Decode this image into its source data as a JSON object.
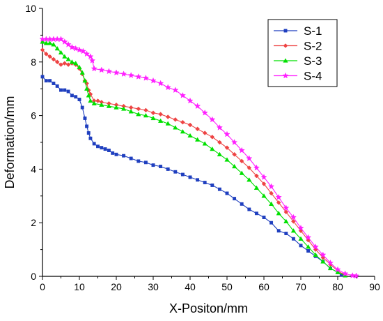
{
  "chart_data": {
    "type": "line",
    "title": "",
    "xlabel": "X-Positon/mm",
    "ylabel": "Deformation/mm",
    "xlim": [
      0,
      90
    ],
    "ylim": [
      0,
      10
    ],
    "x_ticks": [
      "0",
      "10",
      "20",
      "30",
      "40",
      "50",
      "60",
      "70",
      "80",
      "90"
    ],
    "y_ticks": [
      "0",
      "2",
      "4",
      "6",
      "8",
      "10"
    ],
    "grid": false,
    "legend_position": "top-right",
    "series": [
      {
        "name": "S-1",
        "color": "#1f3fbf",
        "marker": "square",
        "points": [
          [
            0,
            7.45
          ],
          [
            1,
            7.3
          ],
          [
            2,
            7.3
          ],
          [
            3,
            7.2
          ],
          [
            4,
            7.1
          ],
          [
            5,
            6.95
          ],
          [
            6,
            6.95
          ],
          [
            7,
            6.9
          ],
          [
            8,
            6.75
          ],
          [
            9,
            6.7
          ],
          [
            10,
            6.6
          ],
          [
            10.8,
            6.3
          ],
          [
            11.5,
            5.9
          ],
          [
            12,
            5.6
          ],
          [
            12.5,
            5.35
          ],
          [
            13,
            5.15
          ],
          [
            14,
            4.95
          ],
          [
            15,
            4.85
          ],
          [
            16,
            4.8
          ],
          [
            17,
            4.75
          ],
          [
            18,
            4.7
          ],
          [
            19,
            4.6
          ],
          [
            20,
            4.55
          ],
          [
            22,
            4.5
          ],
          [
            24,
            4.4
          ],
          [
            26,
            4.3
          ],
          [
            28,
            4.25
          ],
          [
            30,
            4.15
          ],
          [
            32,
            4.1
          ],
          [
            34,
            4.0
          ],
          [
            36,
            3.9
          ],
          [
            38,
            3.8
          ],
          [
            40,
            3.7
          ],
          [
            42,
            3.6
          ],
          [
            44,
            3.5
          ],
          [
            46,
            3.4
          ],
          [
            48,
            3.25
          ],
          [
            50,
            3.1
          ],
          [
            52,
            2.9
          ],
          [
            54,
            2.7
          ],
          [
            56,
            2.5
          ],
          [
            58,
            2.35
          ],
          [
            60,
            2.2
          ],
          [
            62,
            2.0
          ],
          [
            64,
            1.7
          ],
          [
            66,
            1.6
          ],
          [
            68,
            1.4
          ],
          [
            70,
            1.15
          ],
          [
            72,
            0.95
          ],
          [
            74,
            0.75
          ],
          [
            76,
            0.55
          ],
          [
            78,
            0.3
          ],
          [
            80,
            0.15
          ],
          [
            81,
            0.05
          ]
        ]
      },
      {
        "name": "S-2",
        "color": "#ee4444",
        "marker": "diamond",
        "points": [
          [
            0,
            8.45
          ],
          [
            1,
            8.3
          ],
          [
            2,
            8.2
          ],
          [
            3,
            8.1
          ],
          [
            4,
            8.0
          ],
          [
            5,
            7.9
          ],
          [
            6,
            7.95
          ],
          [
            7,
            7.9
          ],
          [
            8,
            7.95
          ],
          [
            9,
            7.9
          ],
          [
            10,
            7.75
          ],
          [
            10.8,
            7.55
          ],
          [
            11.5,
            7.3
          ],
          [
            12,
            7.2
          ],
          [
            12.5,
            6.95
          ],
          [
            13,
            6.8
          ],
          [
            14,
            6.55
          ],
          [
            15,
            6.55
          ],
          [
            16,
            6.5
          ],
          [
            18,
            6.45
          ],
          [
            20,
            6.4
          ],
          [
            22,
            6.35
          ],
          [
            24,
            6.3
          ],
          [
            26,
            6.25
          ],
          [
            28,
            6.2
          ],
          [
            30,
            6.1
          ],
          [
            32,
            6.05
          ],
          [
            34,
            5.95
          ],
          [
            36,
            5.85
          ],
          [
            38,
            5.75
          ],
          [
            40,
            5.65
          ],
          [
            42,
            5.5
          ],
          [
            44,
            5.35
          ],
          [
            46,
            5.2
          ],
          [
            48,
            5.0
          ],
          [
            50,
            4.8
          ],
          [
            52,
            4.55
          ],
          [
            54,
            4.3
          ],
          [
            56,
            4.05
          ],
          [
            58,
            3.75
          ],
          [
            60,
            3.45
          ],
          [
            62,
            3.1
          ],
          [
            64,
            2.75
          ],
          [
            66,
            2.4
          ],
          [
            68,
            2.05
          ],
          [
            70,
            1.7
          ],
          [
            72,
            1.35
          ],
          [
            74,
            1.0
          ],
          [
            76,
            0.7
          ],
          [
            78,
            0.45
          ],
          [
            80,
            0.2
          ],
          [
            82,
            0.05
          ]
        ]
      },
      {
        "name": "S-3",
        "color": "#00e000",
        "marker": "triangle",
        "points": [
          [
            0,
            8.75
          ],
          [
            1,
            8.7
          ],
          [
            2,
            8.7
          ],
          [
            3,
            8.65
          ],
          [
            4,
            8.5
          ],
          [
            5,
            8.35
          ],
          [
            6,
            8.2
          ],
          [
            7,
            8.1
          ],
          [
            8,
            8.0
          ],
          [
            9,
            7.95
          ],
          [
            10,
            7.8
          ],
          [
            10.8,
            7.6
          ],
          [
            11.5,
            7.3
          ],
          [
            12,
            7.0
          ],
          [
            12.5,
            6.75
          ],
          [
            13,
            6.55
          ],
          [
            14,
            6.45
          ],
          [
            16,
            6.4
          ],
          [
            18,
            6.35
          ],
          [
            20,
            6.3
          ],
          [
            22,
            6.25
          ],
          [
            24,
            6.15
          ],
          [
            26,
            6.05
          ],
          [
            28,
            6.0
          ],
          [
            30,
            5.9
          ],
          [
            32,
            5.8
          ],
          [
            34,
            5.7
          ],
          [
            36,
            5.55
          ],
          [
            38,
            5.4
          ],
          [
            40,
            5.25
          ],
          [
            42,
            5.1
          ],
          [
            44,
            4.95
          ],
          [
            46,
            4.75
          ],
          [
            48,
            4.55
          ],
          [
            50,
            4.35
          ],
          [
            52,
            4.1
          ],
          [
            54,
            3.85
          ],
          [
            56,
            3.6
          ],
          [
            58,
            3.3
          ],
          [
            60,
            3.0
          ],
          [
            62,
            2.7
          ],
          [
            64,
            2.35
          ],
          [
            66,
            2.05
          ],
          [
            68,
            1.7
          ],
          [
            70,
            1.4
          ],
          [
            72,
            1.1
          ],
          [
            74,
            0.8
          ],
          [
            76,
            0.55
          ],
          [
            78,
            0.3
          ],
          [
            80,
            0.15
          ],
          [
            82,
            0.03
          ]
        ]
      },
      {
        "name": "S-4",
        "color": "#ff20ff",
        "marker": "star",
        "points": [
          [
            0,
            8.85
          ],
          [
            1,
            8.85
          ],
          [
            2,
            8.85
          ],
          [
            3,
            8.85
          ],
          [
            4,
            8.85
          ],
          [
            5,
            8.85
          ],
          [
            6,
            8.75
          ],
          [
            7,
            8.65
          ],
          [
            8,
            8.55
          ],
          [
            9,
            8.5
          ],
          [
            10,
            8.45
          ],
          [
            11,
            8.4
          ],
          [
            12,
            8.3
          ],
          [
            13,
            8.2
          ],
          [
            13.5,
            8.05
          ],
          [
            14,
            7.75
          ],
          [
            16,
            7.7
          ],
          [
            18,
            7.65
          ],
          [
            20,
            7.6
          ],
          [
            22,
            7.55
          ],
          [
            24,
            7.5
          ],
          [
            26,
            7.45
          ],
          [
            28,
            7.4
          ],
          [
            30,
            7.3
          ],
          [
            32,
            7.2
          ],
          [
            34,
            7.05
          ],
          [
            36,
            6.95
          ],
          [
            38,
            6.75
          ],
          [
            40,
            6.55
          ],
          [
            42,
            6.35
          ],
          [
            44,
            6.1
          ],
          [
            46,
            5.85
          ],
          [
            48,
            5.55
          ],
          [
            50,
            5.3
          ],
          [
            52,
            5.0
          ],
          [
            54,
            4.7
          ],
          [
            56,
            4.4
          ],
          [
            58,
            4.05
          ],
          [
            60,
            3.7
          ],
          [
            62,
            3.35
          ],
          [
            64,
            2.95
          ],
          [
            66,
            2.55
          ],
          [
            68,
            2.2
          ],
          [
            70,
            1.8
          ],
          [
            72,
            1.45
          ],
          [
            74,
            1.1
          ],
          [
            76,
            0.8
          ],
          [
            78,
            0.5
          ],
          [
            80,
            0.25
          ],
          [
            82,
            0.1
          ],
          [
            84,
            0.03
          ],
          [
            85,
            0.02
          ]
        ]
      }
    ]
  }
}
